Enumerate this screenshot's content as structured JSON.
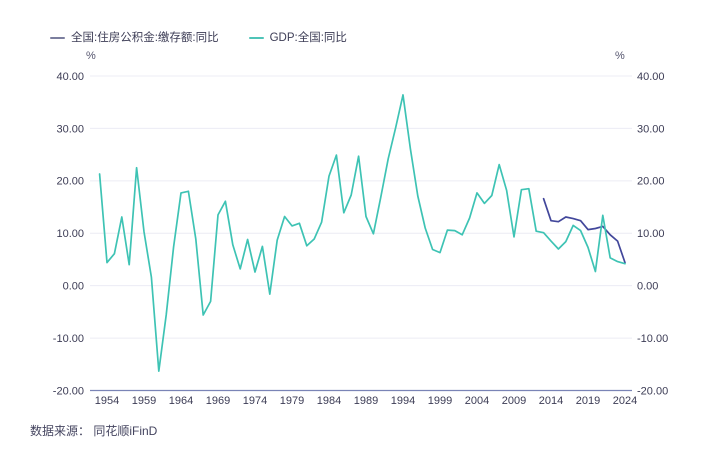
{
  "legend": {
    "items": [
      {
        "label": "全国:住房公积金:缴存额:同比",
        "marker_color": "#7b7e9e"
      },
      {
        "label": "GDP:全国:同比",
        "marker_color": "#4fc4b8"
      }
    ]
  },
  "axes": {
    "unit_left": "%",
    "unit_right": "%",
    "y_ticks": [
      "40.00",
      "30.00",
      "20.00",
      "10.00",
      "0.00",
      "-10.00",
      "-20.00"
    ],
    "x_ticks": [
      "1954",
      "1959",
      "1964",
      "1969",
      "1974",
      "1979",
      "1984",
      "1989",
      "1994",
      "1999",
      "2004",
      "2009",
      "2014",
      "2019",
      "2024"
    ]
  },
  "chart_data": {
    "type": "line",
    "title": "",
    "xlabel": "",
    "ylabel": "%",
    "ylim": [
      -20,
      40
    ],
    "x_range": [
      1953,
      2024
    ],
    "grid": true,
    "legend_position": "top-left",
    "series": [
      {
        "name": "全国:住房公积金:缴存额:同比",
        "color": "#42479b",
        "start_year": 2013,
        "values": [
          16.6,
          12.4,
          12.2,
          13.1,
          12.8,
          12.4,
          10.7,
          10.9,
          11.3,
          9.7,
          8.5,
          4.4
        ]
      },
      {
        "name": "GDP:全国:同比",
        "color": "#3ec3b4",
        "start_year": 1953,
        "values": [
          21.3,
          4.4,
          6.1,
          13.1,
          4.0,
          22.5,
          10.3,
          1.6,
          -16.3,
          -5.6,
          7.4,
          17.7,
          18.0,
          8.9,
          -5.6,
          -3.0,
          13.5,
          16.1,
          7.8,
          3.2,
          8.8,
          2.6,
          7.5,
          -1.6,
          8.7,
          13.2,
          11.4,
          11.9,
          7.6,
          8.9,
          12.1,
          20.9,
          24.9,
          13.9,
          17.3,
          24.7,
          13.2,
          9.9,
          16.9,
          24.2,
          30.1,
          36.4,
          26.1,
          17.1,
          11.0,
          6.9,
          6.3,
          10.6,
          10.5,
          9.7,
          12.9,
          17.7,
          15.7,
          17.2,
          23.1,
          18.2,
          9.3,
          18.3,
          18.5,
          10.4,
          10.1,
          8.5,
          7.0,
          8.4,
          11.5,
          10.5,
          7.3,
          2.7,
          13.4,
          5.3,
          4.6,
          4.2
        ]
      }
    ]
  },
  "source": {
    "text": "数据来源： 同花顺iFinD"
  },
  "style": {
    "grid_color": "#ececf4",
    "axis_color": "#7a84b6",
    "tick_text_color": "#3c3c55",
    "background": "#ffffff"
  }
}
